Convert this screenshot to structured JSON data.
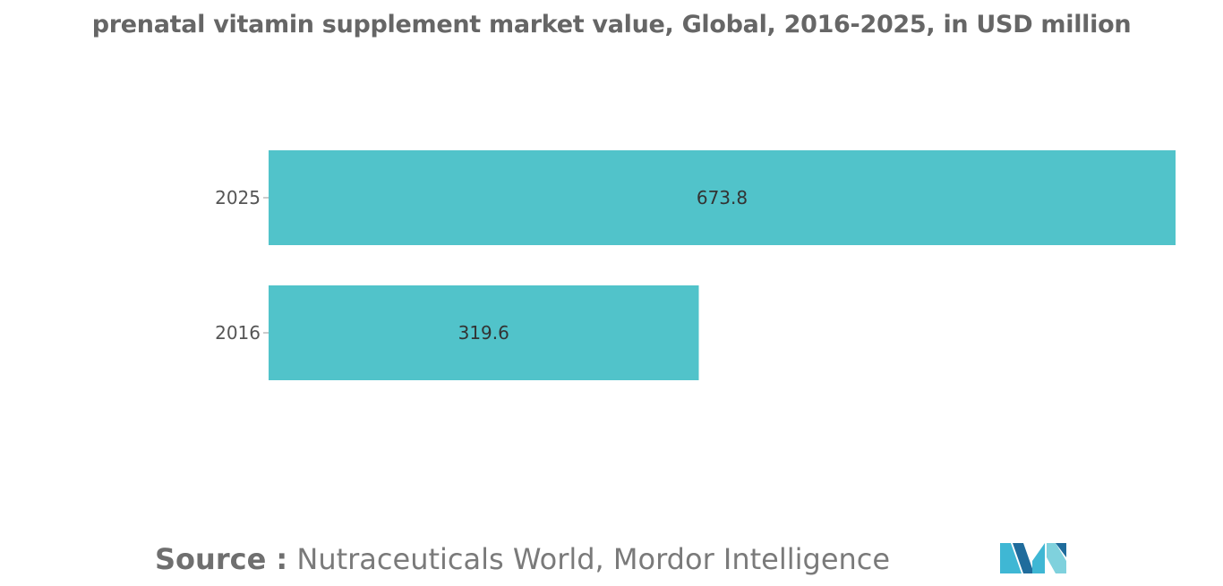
{
  "chart_data": {
    "type": "bar",
    "orientation": "horizontal",
    "title": "prenatal vitamin supplement market value, Global, 2016-2025, in USD million",
    "categories": [
      "2025",
      "2016"
    ],
    "values": [
      673.8,
      319.6
    ],
    "data_labels": [
      "673.8",
      "319.6"
    ],
    "bar_color": "#51c3ca",
    "xlim": [
      0,
      673.8
    ],
    "grid": false,
    "legend": "none"
  },
  "source": {
    "label": "Source :",
    "text": "Nutraceuticals World, Mordor Intelligence"
  },
  "logo": {
    "icon": "mordor-intelligence-logo-icon",
    "colors": [
      "#1f6c9c",
      "#3fb7d4",
      "#7fd1dd"
    ]
  }
}
